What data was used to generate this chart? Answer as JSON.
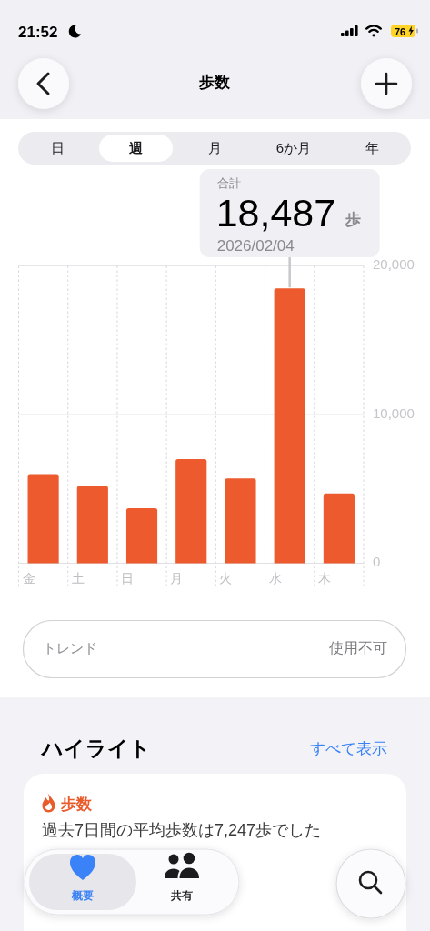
{
  "chart_data": {
    "type": "bar",
    "title": "歩数",
    "categories": [
      "金",
      "土",
      "日",
      "月",
      "火",
      "水",
      "木"
    ],
    "values": [
      6000,
      5200,
      3700,
      7000,
      5700,
      18487,
      4700
    ],
    "color": "#ec5a2d",
    "ylim": [
      0,
      20000
    ],
    "yticks": [
      0,
      {
        "value": 10000,
        "label": "10,000"
      },
      {
        "value": 20000,
        "label": "20,000"
      }
    ],
    "grid": true,
    "annotations": [
      "21:52",
      "76",
      "日",
      "週",
      "月",
      "6か月",
      "年",
      "合計",
      {
        "text": "18,487",
        "x": "水",
        "y": 18487
      },
      "歩",
      "2026/02/04",
      "トレンド",
      "使用不可",
      "ハイライト",
      "すべて表示",
      "歩数",
      "過去7日間の平均歩数は7,247歩でした",
      "概要",
      "共有"
    ]
  }
}
